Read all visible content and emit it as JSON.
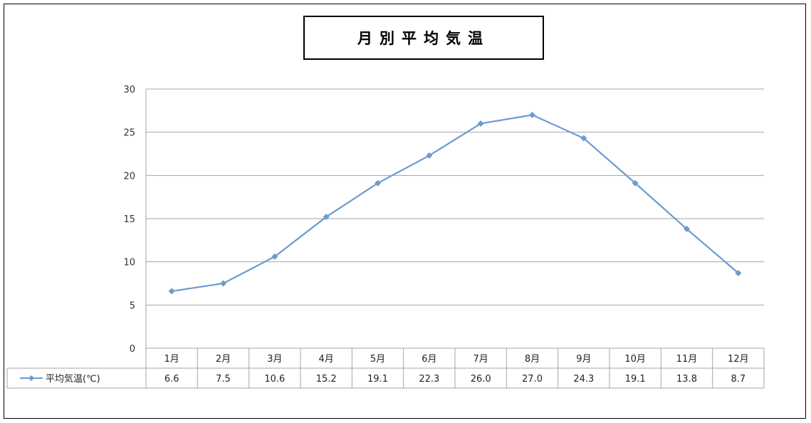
{
  "colors": {
    "line": "#6C9BCF",
    "grid": "#A6A6A6",
    "text": "#333333"
  },
  "chart_data": {
    "type": "line",
    "title": "月別平均気温",
    "categories": [
      "1月",
      "2月",
      "3月",
      "4月",
      "5月",
      "6月",
      "7月",
      "8月",
      "9月",
      "10月",
      "11月",
      "12月"
    ],
    "series": [
      {
        "name": "平均気温(℃)",
        "values": [
          6.6,
          7.5,
          10.6,
          15.2,
          19.1,
          22.3,
          26.0,
          27.0,
          24.3,
          19.1,
          13.8,
          8.7
        ],
        "labels": [
          "6.6",
          "7.5",
          "10.6",
          "15.2",
          "19.1",
          "22.3",
          "26.0",
          "27.0",
          "24.3",
          "19.1",
          "13.8",
          "8.7"
        ]
      }
    ],
    "ylim": [
      0,
      30
    ],
    "yticks": [
      0,
      5,
      10,
      15,
      20,
      25,
      30
    ],
    "grid": true,
    "data_table": true
  }
}
